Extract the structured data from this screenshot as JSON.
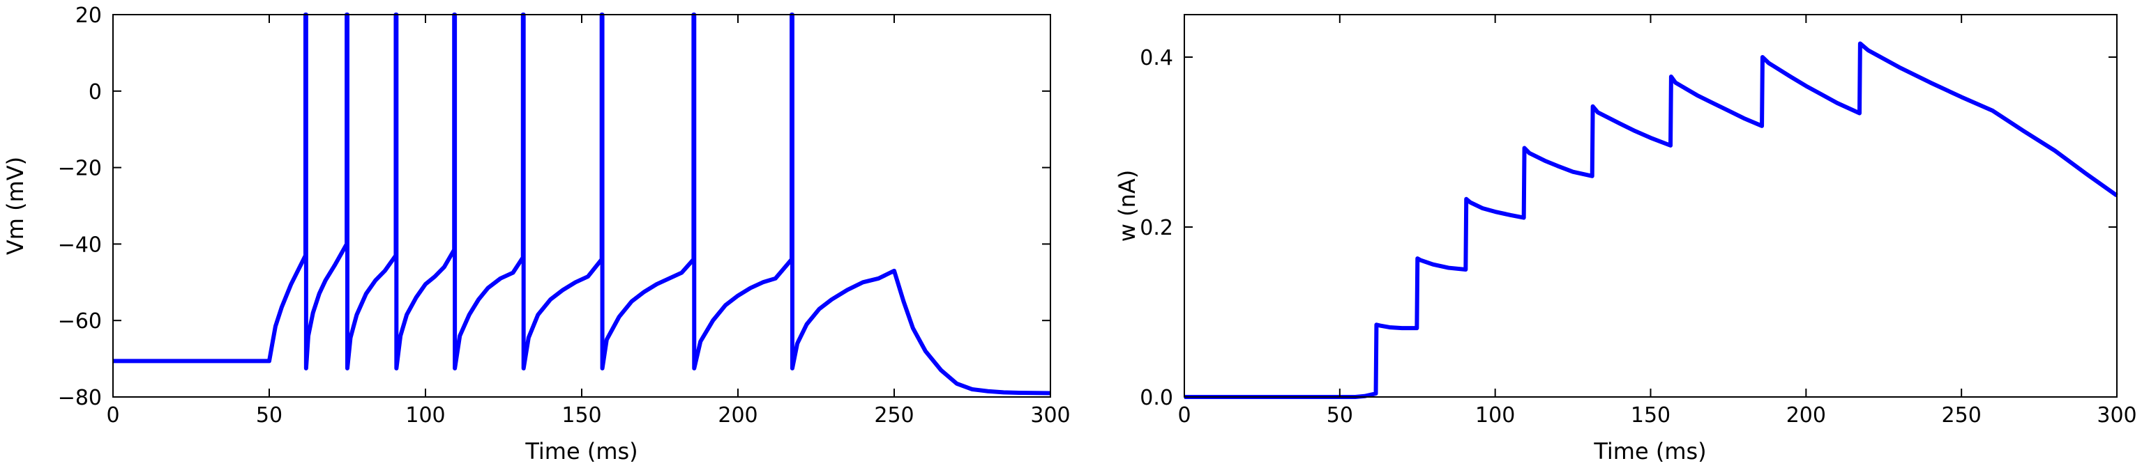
{
  "chart_data": [
    {
      "type": "line",
      "xlabel": "Time (ms)",
      "ylabel": "Vm (mV)",
      "xlim": [
        0,
        300
      ],
      "ylim": [
        -80,
        20
      ],
      "xticks": [
        "0",
        "50",
        "100",
        "150",
        "200",
        "250",
        "300"
      ],
      "yticks": [
        "−80",
        "−60",
        "−40",
        "−20",
        "0",
        "20"
      ],
      "grid": false,
      "line_color": "#0000ff",
      "series": [
        {
          "x": [
            0,
            50,
            51,
            52,
            54,
            57,
            61.6,
            61.6,
            61.8,
            61.8,
            62.5,
            64,
            66,
            68,
            71,
            74.8,
            74.8,
            75,
            75,
            76,
            78,
            81,
            84,
            87,
            90.5,
            90.5,
            90.7,
            90.7,
            92,
            94,
            97,
            100,
            103,
            106,
            109.2,
            109.2,
            109.4,
            109.4,
            111,
            114,
            117,
            120,
            124,
            128,
            131.2,
            131.2,
            131.4,
            131.4,
            133,
            136,
            140,
            144,
            148,
            152,
            156.4,
            156.4,
            156.6,
            156.6,
            158,
            162,
            166,
            170,
            174,
            178,
            182,
            185.8,
            185.8,
            186,
            186,
            188,
            192,
            196,
            200,
            204,
            208,
            212,
            217.2,
            217.2,
            217.4,
            217.4,
            219,
            222,
            226,
            230,
            235,
            240,
            245,
            250,
            253,
            256,
            260,
            265,
            270,
            275,
            280,
            285,
            290,
            300
          ],
          "y": [
            -70.6,
            -70.6,
            -66,
            -61.5,
            -56.5,
            -50.5,
            -43,
            20,
            20,
            -72.5,
            -64,
            -58,
            -53,
            -49.5,
            -45.5,
            -40,
            20,
            20,
            -72.5,
            -64.5,
            -58.5,
            -53,
            -49.5,
            -47,
            -43,
            20,
            20,
            -72.5,
            -64,
            -58.5,
            -54,
            -50.5,
            -48.5,
            -46,
            -41.5,
            20,
            20,
            -72.5,
            -64,
            -58.5,
            -54.5,
            -51.5,
            -49,
            -47.5,
            -43.5,
            20,
            20,
            -72.5,
            -64.5,
            -58.5,
            -54.5,
            -52,
            -50,
            -48.5,
            -44,
            20,
            20,
            -72.5,
            -65,
            -59,
            -55,
            -52.5,
            -50.5,
            -49,
            -47.5,
            -44,
            20,
            20,
            -72.5,
            -65.5,
            -60,
            -56,
            -53.5,
            -51.5,
            -50,
            -49,
            -44,
            20,
            20,
            -72.5,
            -66,
            -61,
            -57,
            -54.5,
            -52,
            -50,
            -49,
            -47,
            -55,
            -62,
            -68,
            -73,
            -76.5,
            -78,
            -78.5,
            -78.8,
            -78.9,
            -79
          ]
        }
      ]
    },
    {
      "type": "line",
      "xlabel": "Time (ms)",
      "ylabel": "w (nA)",
      "xlim": [
        0,
        300
      ],
      "ylim": [
        0,
        0.45
      ],
      "xticks": [
        "0",
        "50",
        "100",
        "150",
        "200",
        "250",
        "300"
      ],
      "yticks": [
        "0.0",
        "0.2",
        "0.4"
      ],
      "grid": false,
      "line_color": "#0000ff",
      "series": [
        {
          "x": [
            0,
            50,
            55,
            58,
            61.6,
            61.8,
            63,
            66,
            70,
            74.8,
            75,
            76,
            80,
            85,
            90.5,
            90.7,
            92,
            96,
            100,
            105,
            109.2,
            109.4,
            111,
            116,
            120,
            125,
            131.2,
            131.4,
            133,
            140,
            145,
            150,
            156.4,
            156.6,
            158,
            165,
            170,
            175,
            180,
            185.8,
            186,
            188,
            195,
            200,
            205,
            210,
            217.2,
            217.4,
            220,
            230,
            240,
            250,
            260,
            270,
            280,
            290,
            300
          ],
          "y": [
            0.0,
            0.0,
            0.0,
            0.001,
            0.004,
            0.085,
            0.084,
            0.082,
            0.081,
            0.081,
            0.163,
            0.161,
            0.156,
            0.152,
            0.15,
            0.233,
            0.229,
            0.222,
            0.218,
            0.214,
            0.211,
            0.293,
            0.287,
            0.278,
            0.272,
            0.265,
            0.26,
            0.342,
            0.335,
            0.322,
            0.313,
            0.305,
            0.296,
            0.377,
            0.37,
            0.355,
            0.346,
            0.337,
            0.328,
            0.319,
            0.4,
            0.393,
            0.377,
            0.366,
            0.356,
            0.346,
            0.334,
            0.416,
            0.408,
            0.388,
            0.37,
            0.353,
            0.337,
            0.313,
            0.29,
            0.263,
            0.237
          ]
        }
      ]
    }
  ]
}
